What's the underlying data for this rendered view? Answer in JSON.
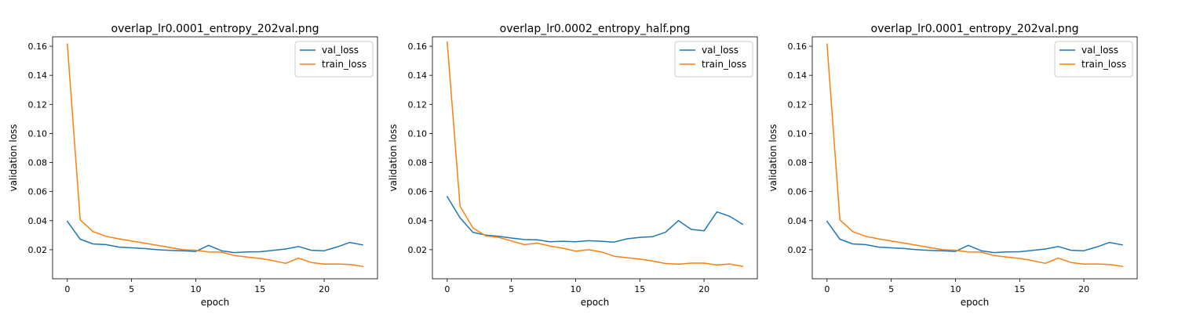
{
  "chart_data": [
    {
      "type": "line",
      "title": "overlap_lr0.0001_entropy_202val.png",
      "xlabel": "epoch",
      "ylabel": "validation loss",
      "xlim": [
        -1.15,
        24.15
      ],
      "ylim": [
        0.0,
        0.1665
      ],
      "xticks": [
        0,
        5,
        10,
        15,
        20
      ],
      "yticks": [
        0.02,
        0.04,
        0.06,
        0.08,
        0.1,
        0.12,
        0.14,
        0.16
      ],
      "legend": "top-right",
      "grid": false,
      "series": [
        {
          "name": "val_loss",
          "color": "#1f77b4",
          "x": [
            0,
            1,
            2,
            3,
            4,
            5,
            6,
            7,
            8,
            9,
            10,
            11,
            12,
            13,
            14,
            15,
            16,
            17,
            18,
            19,
            20,
            21,
            22,
            23
          ],
          "y": [
            0.0395,
            0.0272,
            0.024,
            0.0235,
            0.0218,
            0.0213,
            0.0208,
            0.02,
            0.0195,
            0.0193,
            0.0188,
            0.023,
            0.0193,
            0.018,
            0.0185,
            0.0186,
            0.0195,
            0.0205,
            0.0222,
            0.0196,
            0.0193,
            0.0219,
            0.025,
            0.0233
          ]
        },
        {
          "name": "train_loss",
          "color": "#ff7f0e",
          "x": [
            0,
            1,
            2,
            3,
            4,
            5,
            6,
            7,
            8,
            9,
            10,
            11,
            12,
            13,
            14,
            15,
            16,
            17,
            18,
            19,
            20,
            21,
            22,
            23
          ],
          "y": [
            0.1615,
            0.0405,
            0.0325,
            0.0292,
            0.0275,
            0.026,
            0.0245,
            0.023,
            0.0215,
            0.02,
            0.0196,
            0.0185,
            0.0183,
            0.016,
            0.015,
            0.014,
            0.0125,
            0.0106,
            0.0142,
            0.0112,
            0.0101,
            0.0102,
            0.0098,
            0.0085
          ]
        }
      ]
    },
    {
      "type": "line",
      "title": "overlap_lr0.0002_entropy_half.png",
      "xlabel": "epoch",
      "ylabel": "validation loss",
      "xlim": [
        -1.15,
        24.15
      ],
      "ylim": [
        0.0,
        0.1665
      ],
      "xticks": [
        0,
        5,
        10,
        15,
        20
      ],
      "yticks": [
        0.02,
        0.04,
        0.06,
        0.08,
        0.1,
        0.12,
        0.14,
        0.16
      ],
      "legend": "top-right",
      "grid": false,
      "series": [
        {
          "name": "val_loss",
          "color": "#1f77b4",
          "x": [
            0,
            1,
            2,
            3,
            4,
            5,
            6,
            7,
            8,
            9,
            10,
            11,
            12,
            13,
            14,
            15,
            16,
            17,
            18,
            19,
            20,
            21,
            22,
            23
          ],
          "y": [
            0.0565,
            0.042,
            0.032,
            0.03,
            0.0292,
            0.028,
            0.027,
            0.0268,
            0.0255,
            0.0258,
            0.0255,
            0.0262,
            0.0258,
            0.0252,
            0.0275,
            0.0285,
            0.029,
            0.032,
            0.04,
            0.034,
            0.033,
            0.046,
            0.043,
            0.0375
          ]
        },
        {
          "name": "train_loss",
          "color": "#ff7f0e",
          "x": [
            0,
            1,
            2,
            3,
            4,
            5,
            6,
            7,
            8,
            9,
            10,
            11,
            12,
            13,
            14,
            15,
            16,
            17,
            18,
            19,
            20,
            21,
            22,
            23
          ],
          "y": [
            0.163,
            0.05,
            0.035,
            0.0295,
            0.0285,
            0.026,
            0.0235,
            0.0245,
            0.0225,
            0.021,
            0.019,
            0.02,
            0.0185,
            0.0155,
            0.0145,
            0.0135,
            0.0122,
            0.0105,
            0.01,
            0.0108,
            0.0108,
            0.0095,
            0.0102,
            0.0085
          ]
        }
      ]
    },
    {
      "type": "line",
      "title": "overlap_lr0.0001_entropy_202val.png",
      "xlabel": "epoch",
      "ylabel": "validation loss",
      "xlim": [
        -1.15,
        24.15
      ],
      "ylim": [
        0.0,
        0.1665
      ],
      "xticks": [
        0,
        5,
        10,
        15,
        20
      ],
      "yticks": [
        0.02,
        0.04,
        0.06,
        0.08,
        0.1,
        0.12,
        0.14,
        0.16
      ],
      "legend": "top-right",
      "grid": false,
      "series": [
        {
          "name": "val_loss",
          "color": "#1f77b4",
          "x": [
            0,
            1,
            2,
            3,
            4,
            5,
            6,
            7,
            8,
            9,
            10,
            11,
            12,
            13,
            14,
            15,
            16,
            17,
            18,
            19,
            20,
            21,
            22,
            23
          ],
          "y": [
            0.0395,
            0.0272,
            0.024,
            0.0235,
            0.0218,
            0.0213,
            0.0208,
            0.02,
            0.0195,
            0.0193,
            0.0188,
            0.023,
            0.0193,
            0.018,
            0.0185,
            0.0186,
            0.0195,
            0.0205,
            0.0222,
            0.0196,
            0.0193,
            0.0219,
            0.025,
            0.0233
          ]
        },
        {
          "name": "train_loss",
          "color": "#ff7f0e",
          "x": [
            0,
            1,
            2,
            3,
            4,
            5,
            6,
            7,
            8,
            9,
            10,
            11,
            12,
            13,
            14,
            15,
            16,
            17,
            18,
            19,
            20,
            21,
            22,
            23
          ],
          "y": [
            0.1615,
            0.0405,
            0.0325,
            0.0292,
            0.0275,
            0.026,
            0.0245,
            0.023,
            0.0215,
            0.02,
            0.0196,
            0.0185,
            0.0183,
            0.016,
            0.015,
            0.014,
            0.0125,
            0.0106,
            0.0142,
            0.0112,
            0.0101,
            0.0102,
            0.0098,
            0.0085
          ]
        }
      ]
    }
  ]
}
